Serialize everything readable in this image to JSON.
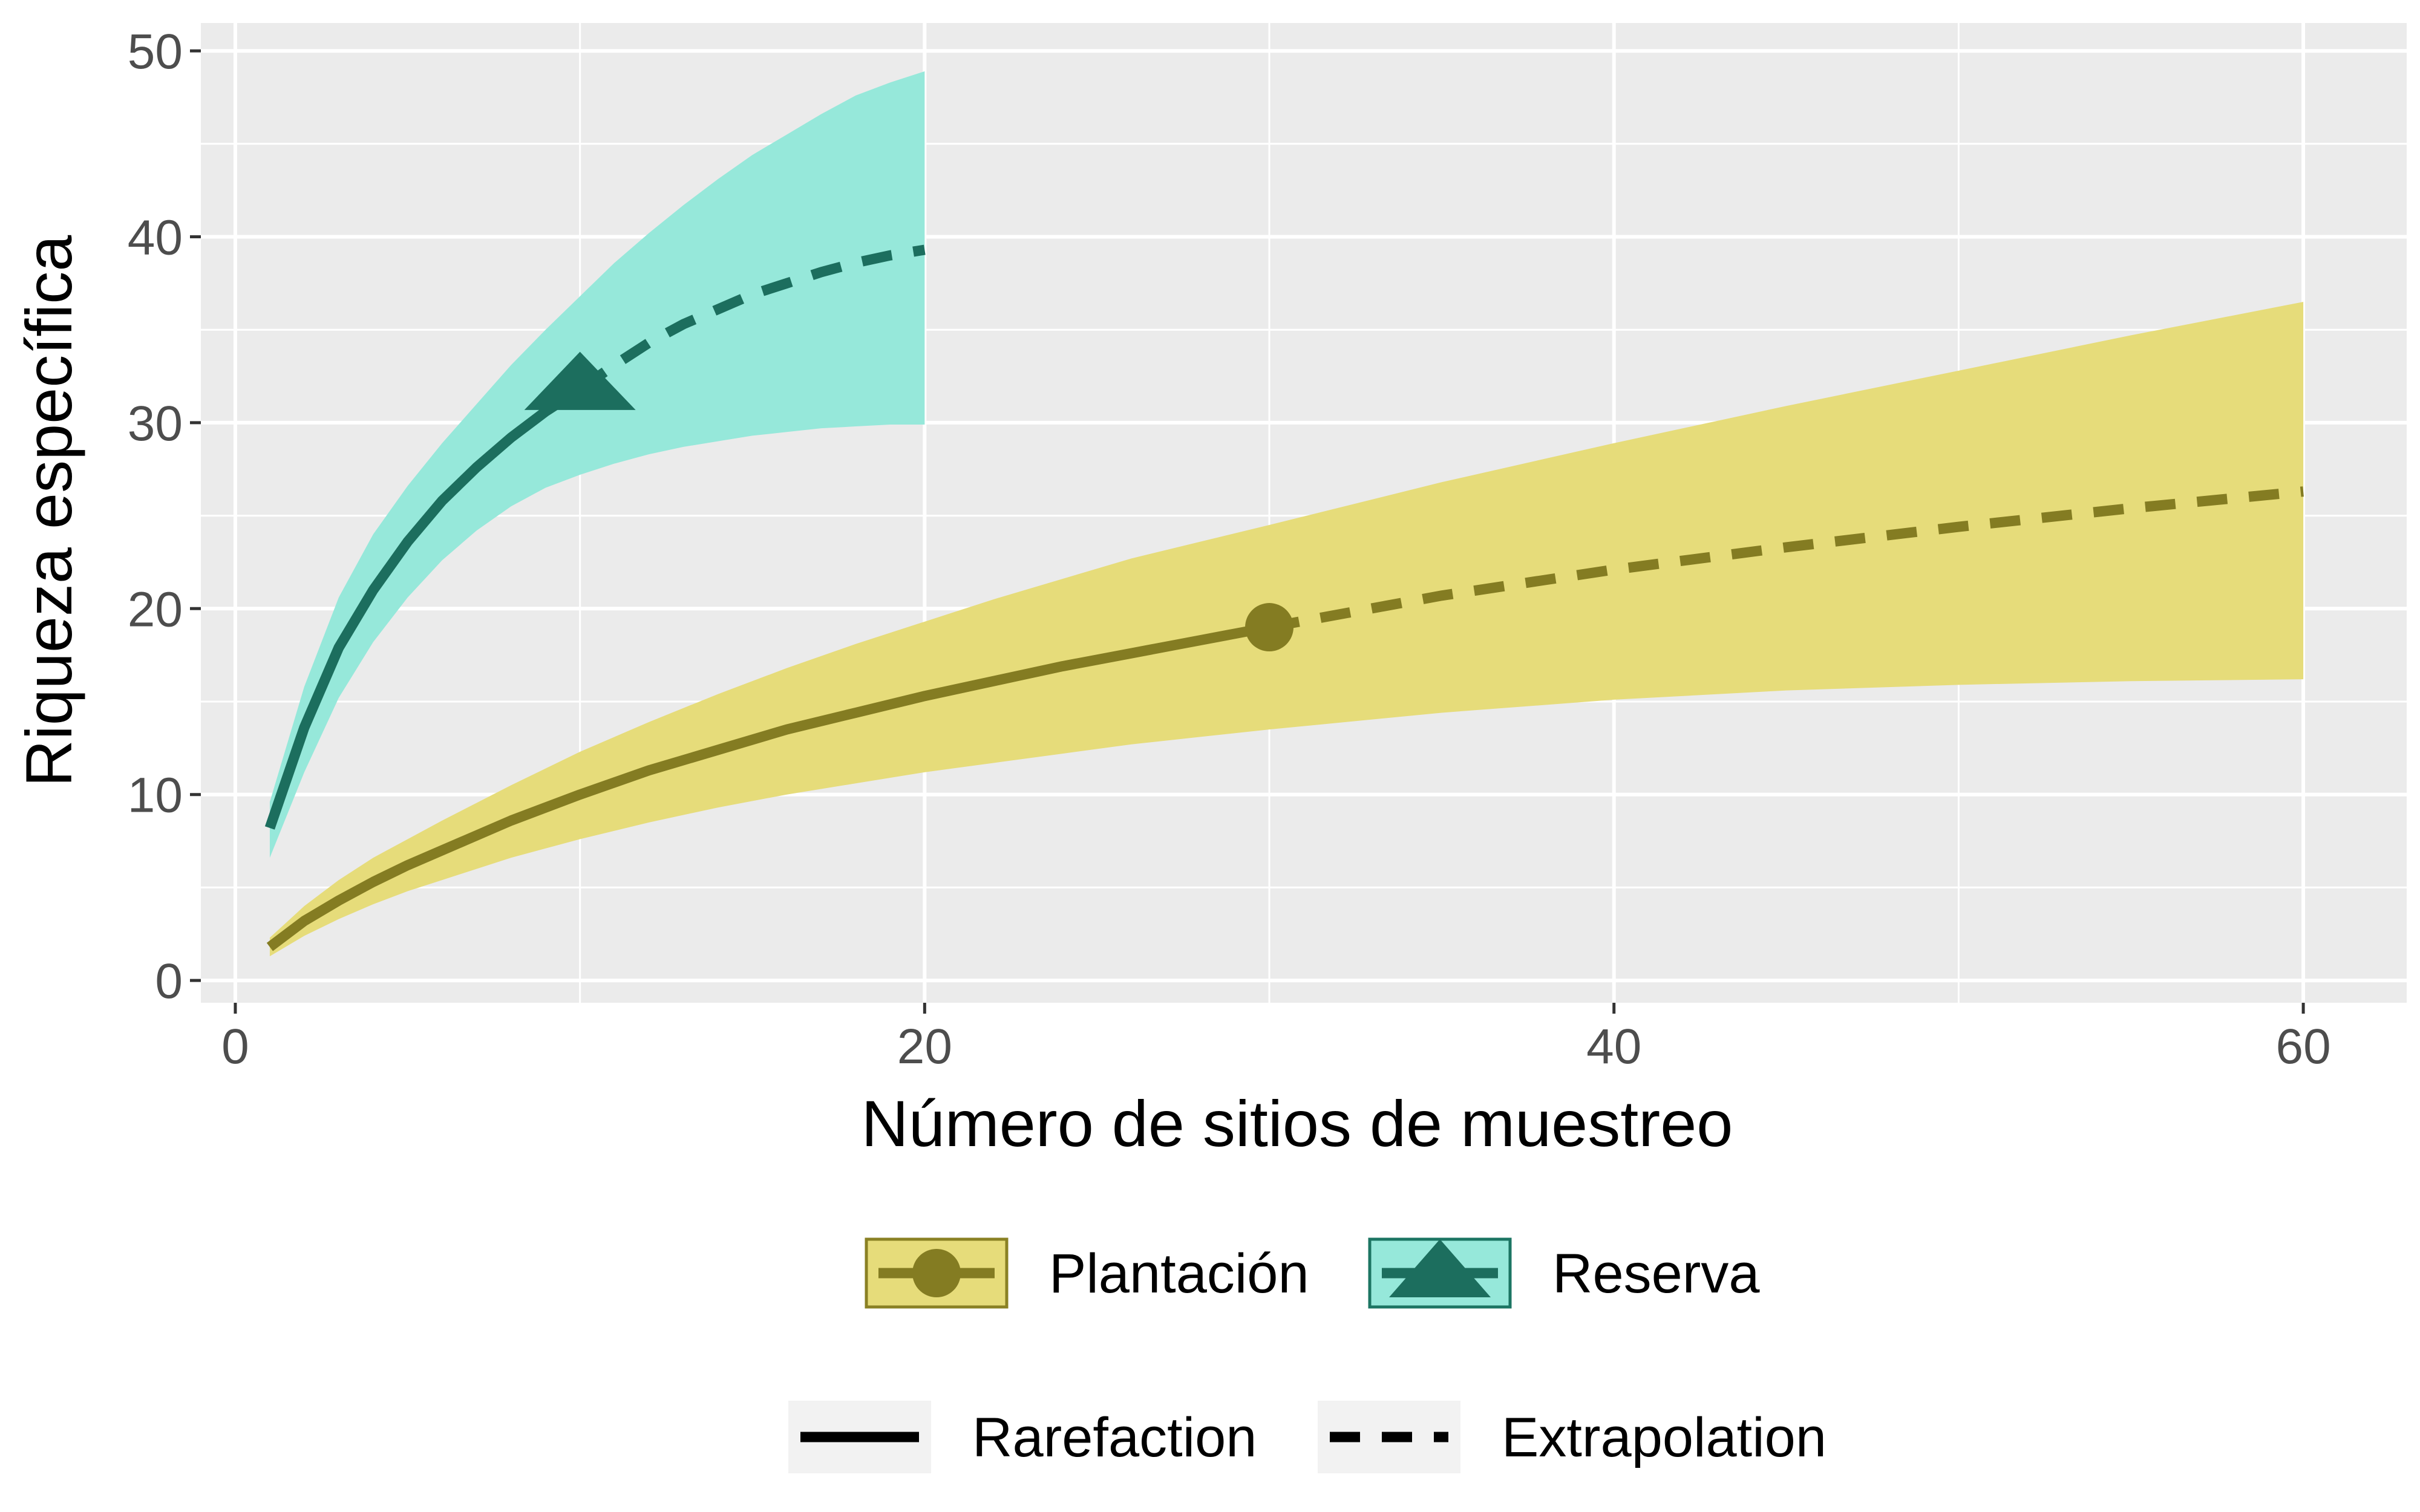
{
  "chart_data": {
    "type": "line",
    "title": "",
    "xlabel": "Número de sitios de muestreo",
    "ylabel": "Riqueza específica",
    "xlim": [
      -1,
      63
    ],
    "ylim": [
      -1.2,
      51.5
    ],
    "x_ticks": [
      0,
      20,
      40,
      60
    ],
    "y_ticks": [
      0,
      10,
      20,
      30,
      40,
      50
    ],
    "grid": true,
    "legend_position": "bottom",
    "series": [
      {
        "name": "Plantación",
        "line_color": "#847c22",
        "fill_color": "#e6dc7a",
        "fill_stroke": "#8a8124",
        "marker": "circle",
        "observed": {
          "x": 30,
          "y": 19
        },
        "rarefaction": {
          "x": [
            1,
            2,
            3,
            4,
            5,
            6,
            8,
            10,
            12,
            14,
            16,
            18,
            20,
            22,
            24,
            26,
            28,
            30
          ],
          "y": [
            1.8,
            3.2,
            4.3,
            5.3,
            6.2,
            7.0,
            8.6,
            10.0,
            11.3,
            12.4,
            13.5,
            14.4,
            15.3,
            16.1,
            16.9,
            17.6,
            18.3,
            19.0
          ]
        },
        "extrapolation": {
          "x": [
            30,
            35,
            40,
            45,
            50,
            55,
            60
          ],
          "y": [
            19.0,
            20.7,
            22.1,
            23.3,
            24.4,
            25.4,
            26.3
          ]
        },
        "ci": {
          "x": [
            1,
            2,
            3,
            4,
            5,
            6,
            8,
            10,
            12,
            14,
            16,
            18,
            20,
            22,
            24,
            26,
            28,
            30,
            35,
            40,
            45,
            50,
            55,
            60
          ],
          "lower": [
            1.3,
            2.4,
            3.3,
            4.1,
            4.8,
            5.4,
            6.6,
            7.6,
            8.5,
            9.3,
            10.0,
            10.6,
            11.2,
            11.7,
            12.2,
            12.7,
            13.1,
            13.5,
            14.4,
            15.1,
            15.6,
            15.9,
            16.1,
            16.2
          ],
          "upper": [
            2.3,
            4.0,
            5.4,
            6.6,
            7.6,
            8.6,
            10.5,
            12.3,
            13.9,
            15.4,
            16.8,
            18.1,
            19.3,
            20.5,
            21.6,
            22.7,
            23.6,
            24.5,
            26.8,
            28.9,
            30.9,
            32.8,
            34.7,
            36.5
          ]
        }
      },
      {
        "name": "Reserva",
        "line_color": "#1c6e5e",
        "fill_color": "#96e8da",
        "fill_stroke": "#1c7563",
        "marker": "triangle",
        "observed": {
          "x": 10,
          "y": 32
        },
        "rarefaction": {
          "x": [
            1,
            2,
            3,
            4,
            5,
            6,
            7,
            8,
            9,
            10
          ],
          "y": [
            8.2,
            13.6,
            17.9,
            21.0,
            23.6,
            25.8,
            27.6,
            29.2,
            30.6,
            31.8
          ]
        },
        "extrapolation": {
          "x": [
            10,
            11,
            12,
            13,
            14,
            15,
            16,
            17,
            18,
            19,
            20
          ],
          "y": [
            31.8,
            33.1,
            34.3,
            35.3,
            36.1,
            36.9,
            37.5,
            38.1,
            38.6,
            39.0,
            39.3
          ]
        },
        "ci": {
          "x": [
            1,
            2,
            3,
            4,
            5,
            6,
            7,
            8,
            9,
            10,
            11,
            12,
            13,
            14,
            15,
            16,
            17,
            18,
            19,
            20
          ],
          "lower": [
            6.6,
            11.2,
            15.2,
            18.2,
            20.6,
            22.6,
            24.2,
            25.5,
            26.5,
            27.2,
            27.8,
            28.3,
            28.7,
            29.0,
            29.3,
            29.5,
            29.7,
            29.8,
            29.9,
            29.9
          ],
          "upper": [
            9.6,
            15.8,
            20.6,
            24.0,
            26.6,
            28.9,
            31.0,
            33.1,
            35.0,
            36.8,
            38.6,
            40.2,
            41.7,
            43.1,
            44.4,
            45.5,
            46.6,
            47.6,
            48.3,
            48.9
          ]
        }
      }
    ],
    "linetype_legend": [
      {
        "label": "Rarefaction",
        "style": "solid"
      },
      {
        "label": "Extrapolation",
        "style": "dashed"
      }
    ]
  },
  "colors": {
    "panel_background": "#ebebeb",
    "grid_line": "#ffffff",
    "tick_text": "#4d4d4d",
    "axis_tick": "#333333",
    "legend_key_background": "#f2f2f2"
  }
}
